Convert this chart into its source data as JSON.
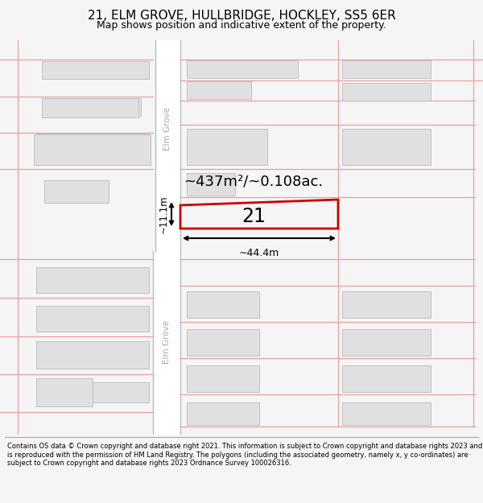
{
  "title": "21, ELM GROVE, HULLBRIDGE, HOCKLEY, SS5 6ER",
  "subtitle": "Map shows position and indicative extent of the property.",
  "footer": "Contains OS data © Crown copyright and database right 2021. This information is subject to Crown copyright and database rights 2023 and is reproduced with the permission of HM Land Registry. The polygons (including the associated geometry, namely x, y co-ordinates) are subject to Crown copyright and database rights 2023 Ordnance Survey 100026316.",
  "bg_color": "#f5f5f5",
  "map_bg": "#ffffff",
  "building_fill": "#e0e0e0",
  "building_edge": "#bbbbbb",
  "pink_line_color": "#e8a0a0",
  "highlight_color": "#cc0000",
  "area_text": "~437m²/~0.108ac.",
  "number_text": "21",
  "dim_width": "~44.4m",
  "dim_height": "~11.1m",
  "street_label": "Elm Grove",
  "road_color": "#ffffff",
  "road_border_color": "#bbbbbb"
}
